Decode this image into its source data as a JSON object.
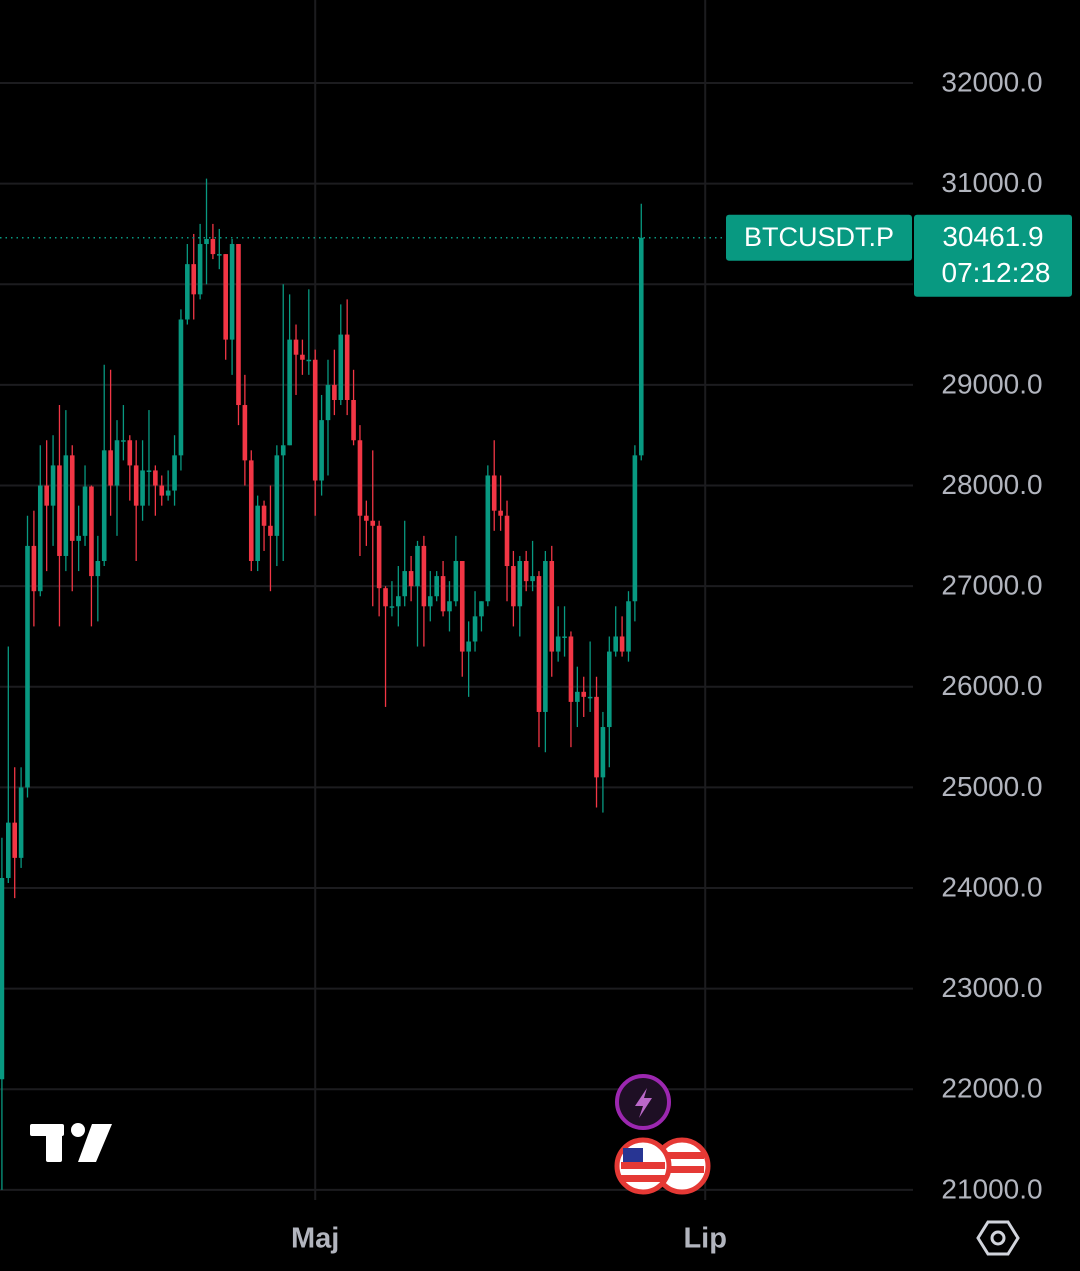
{
  "chart_data": {
    "type": "candlestick",
    "symbol": "BTCUSDT.P",
    "countdown": "07:12:28",
    "up_color": "#089981",
    "down_color": "#f23645",
    "grid": true,
    "xlim": [
      -0.3,
      142.5
    ],
    "xticks": [
      {
        "value": 49,
        "label": "Maj"
      },
      {
        "value": 110,
        "label": "Lip"
      }
    ],
    "ylim": [
      20900,
      32825
    ],
    "yticks": [
      {
        "value": 21000,
        "label": "21000.0"
      },
      {
        "value": 22000,
        "label": "22000.0"
      },
      {
        "value": 23000,
        "label": "23000.0"
      },
      {
        "value": 24000,
        "label": "24000.0"
      },
      {
        "value": 25000,
        "label": "25000.0"
      },
      {
        "value": 26000,
        "label": "26000.0"
      },
      {
        "value": 27000,
        "label": "27000.0"
      },
      {
        "value": 28000,
        "label": "28000.0"
      },
      {
        "value": 29000,
        "label": "29000.0"
      },
      {
        "value": 30000,
        "label": "30000.0"
      },
      {
        "value": 31000,
        "label": "31000.0"
      },
      {
        "value": 32000,
        "label": "32000.0"
      }
    ],
    "open": [
      22100,
      24100,
      24650,
      24300,
      25000,
      27400,
      26950,
      28000,
      27800,
      28200,
      27300,
      28300,
      27450,
      27500,
      27990,
      27100,
      27250,
      28350,
      28000,
      28450,
      28450,
      28200,
      27800,
      28150,
      28150,
      28000,
      27900,
      27950,
      28300,
      29650,
      30200,
      29900,
      30400,
      30450,
      30300,
      30300,
      29450,
      30400,
      28800,
      28250,
      27250,
      27800,
      27600,
      27500,
      28300,
      28400,
      29450,
      29300,
      29250,
      29250,
      28050,
      28650,
      29000,
      28850,
      29500,
      28850,
      28450,
      27700,
      27650,
      27600,
      26980,
      26800,
      26800,
      26900,
      27150,
      27000,
      27400,
      26800,
      26900,
      27100,
      26750,
      26850,
      27250,
      26350,
      26450,
      26700,
      26850,
      28100,
      27750,
      27700,
      27200,
      26800,
      27250,
      27050,
      27100,
      25750,
      27250,
      26350,
      26500,
      26500,
      25850,
      25950,
      25900,
      25900,
      25100,
      25600,
      26350,
      26500,
      26350,
      26850,
      28300
    ],
    "high": [
      24500,
      26400,
      25200,
      25200,
      27700,
      27750,
      28400,
      28450,
      28500,
      28800,
      28750,
      28400,
      27800,
      28200,
      28000,
      27500,
      29200,
      29150,
      28650,
      28800,
      28500,
      28450,
      28450,
      28750,
      28200,
      28100,
      28150,
      28500,
      29750,
      30400,
      30500,
      30600,
      31050,
      30600,
      30550,
      30300,
      30450,
      30400,
      29100,
      28350,
      27900,
      27850,
      28000,
      28400,
      30000,
      29900,
      29600,
      29450,
      29950,
      29350,
      28900,
      29250,
      29350,
      29800,
      29850,
      29150,
      28600,
      27850,
      28350,
      27650,
      27000,
      27050,
      27200,
      27650,
      27300,
      27450,
      27500,
      27150,
      27150,
      27250,
      27050,
      27500,
      27250,
      26650,
      26950,
      26850,
      28200,
      28450,
      28100,
      27850,
      27350,
      27300,
      27350,
      27450,
      27150,
      27350,
      27400,
      26800,
      26800,
      26550,
      26200,
      26100,
      26450,
      26100,
      25750,
      26500,
      26800,
      26700,
      26950,
      28400,
      30800
    ],
    "low": [
      21000,
      24050,
      23900,
      24200,
      24900,
      26600,
      26900,
      27150,
      27400,
      26600,
      27150,
      26950,
      27150,
      27400,
      26600,
      26650,
      27200,
      27700,
      27500,
      28250,
      27850,
      27250,
      27650,
      27800,
      27700,
      27800,
      27850,
      27800,
      28150,
      29600,
      29650,
      29850,
      30000,
      30250,
      30150,
      29250,
      29100,
      28600,
      28000,
      27150,
      27150,
      27350,
      26950,
      27200,
      27250,
      28400,
      28900,
      29100,
      29100,
      27700,
      27900,
      28100,
      28700,
      28800,
      28700,
      28400,
      27300,
      27400,
      26800,
      26700,
      25800,
      26700,
      26600,
      26800,
      26850,
      26400,
      26400,
      26650,
      26850,
      26700,
      26550,
      26800,
      26100,
      25900,
      26350,
      26550,
      26800,
      27550,
      27550,
      26850,
      26600,
      26500,
      26950,
      26950,
      25400,
      25350,
      26100,
      26250,
      26300,
      25400,
      25600,
      25700,
      25750,
      24800,
      24750,
      25200,
      26300,
      26300,
      26250,
      26650,
      28250
    ],
    "close": [
      24100,
      24650,
      24300,
      25000,
      27400,
      26950,
      28000,
      27800,
      28200,
      27300,
      28300,
      27450,
      27500,
      27990,
      27100,
      27250,
      28350,
      28000,
      28450,
      28450,
      28200,
      27800,
      28150,
      28150,
      28000,
      27900,
      27950,
      28300,
      29650,
      30200,
      29900,
      30400,
      30450,
      30300,
      30300,
      29450,
      30400,
      28800,
      28250,
      27250,
      27800,
      27600,
      27500,
      28300,
      28400,
      29450,
      29300,
      29250,
      29250,
      28050,
      28650,
      29000,
      28850,
      29500,
      28850,
      28450,
      27700,
      27650,
      27600,
      26980,
      26800,
      26800,
      26900,
      27150,
      27000,
      27400,
      26800,
      26900,
      27100,
      26750,
      26850,
      27250,
      26350,
      26450,
      26700,
      26850,
      28100,
      27750,
      27700,
      27200,
      26800,
      27250,
      27050,
      27100,
      25750,
      27250,
      26350,
      26500,
      26500,
      25850,
      25950,
      25900,
      25900,
      25100,
      25600,
      26350,
      26500,
      26350,
      26850,
      28300,
      30461.9
    ]
  }
}
